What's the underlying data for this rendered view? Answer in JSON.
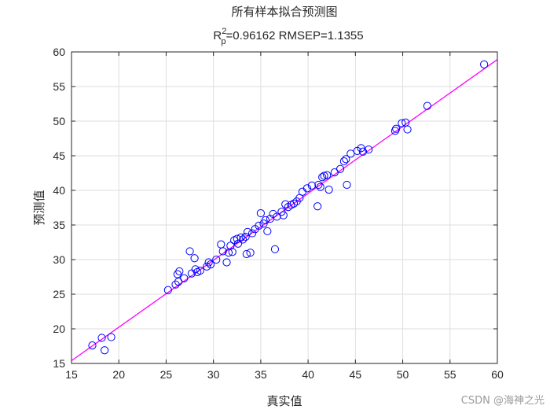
{
  "chart_data": {
    "type": "scatter",
    "title_top": "所有样本拟合预测图",
    "title_r_base": "R",
    "title_r_sup": "2",
    "title_r_sub": "p",
    "title_rest": "=0.96162  RMSEP=1.1355",
    "xlabel": "真实值",
    "ylabel": "预测值",
    "xlim": [
      15,
      60
    ],
    "ylim": [
      15,
      60
    ],
    "xticks": [
      15,
      20,
      25,
      30,
      35,
      40,
      45,
      50,
      55,
      60
    ],
    "yticks": [
      15,
      20,
      25,
      30,
      35,
      40,
      45,
      50,
      55,
      60
    ],
    "grid": true,
    "marker_color": "#0000ff",
    "fit_line": {
      "color": "#ff00ff",
      "x": [
        15,
        60
      ],
      "y": [
        15.4,
        58.9
      ]
    },
    "points": [
      {
        "x": 17.2,
        "y": 17.6
      },
      {
        "x": 18.2,
        "y": 18.7
      },
      {
        "x": 18.5,
        "y": 16.9
      },
      {
        "x": 19.2,
        "y": 18.8
      },
      {
        "x": 25.2,
        "y": 25.6
      },
      {
        "x": 26.0,
        "y": 26.4
      },
      {
        "x": 26.3,
        "y": 26.8
      },
      {
        "x": 26.2,
        "y": 27.9
      },
      {
        "x": 26.4,
        "y": 28.3
      },
      {
        "x": 26.9,
        "y": 27.3
      },
      {
        "x": 27.5,
        "y": 31.2
      },
      {
        "x": 27.7,
        "y": 28.0
      },
      {
        "x": 28.0,
        "y": 30.2
      },
      {
        "x": 28.1,
        "y": 28.6
      },
      {
        "x": 28.3,
        "y": 28.2
      },
      {
        "x": 28.6,
        "y": 28.4
      },
      {
        "x": 29.3,
        "y": 29.0
      },
      {
        "x": 29.5,
        "y": 29.6
      },
      {
        "x": 29.7,
        "y": 29.3
      },
      {
        "x": 30.3,
        "y": 30.0
      },
      {
        "x": 30.8,
        "y": 32.2
      },
      {
        "x": 31.0,
        "y": 31.2
      },
      {
        "x": 31.4,
        "y": 29.6
      },
      {
        "x": 31.6,
        "y": 31.0
      },
      {
        "x": 31.8,
        "y": 32.0
      },
      {
        "x": 32.0,
        "y": 31.1
      },
      {
        "x": 32.2,
        "y": 32.8
      },
      {
        "x": 32.5,
        "y": 33.0
      },
      {
        "x": 32.6,
        "y": 32.3
      },
      {
        "x": 32.9,
        "y": 33.2
      },
      {
        "x": 33.1,
        "y": 32.9
      },
      {
        "x": 33.4,
        "y": 33.3
      },
      {
        "x": 33.5,
        "y": 30.8
      },
      {
        "x": 33.6,
        "y": 34.0
      },
      {
        "x": 33.9,
        "y": 31.0
      },
      {
        "x": 34.1,
        "y": 33.8
      },
      {
        "x": 34.4,
        "y": 34.4
      },
      {
        "x": 34.8,
        "y": 34.9
      },
      {
        "x": 35.0,
        "y": 36.7
      },
      {
        "x": 35.3,
        "y": 35.2
      },
      {
        "x": 35.5,
        "y": 35.7
      },
      {
        "x": 35.7,
        "y": 34.1
      },
      {
        "x": 36.0,
        "y": 35.9
      },
      {
        "x": 36.3,
        "y": 36.6
      },
      {
        "x": 36.5,
        "y": 31.5
      },
      {
        "x": 36.7,
        "y": 36.2
      },
      {
        "x": 37.2,
        "y": 36.9
      },
      {
        "x": 37.4,
        "y": 36.4
      },
      {
        "x": 37.6,
        "y": 38.0
      },
      {
        "x": 37.9,
        "y": 37.6
      },
      {
        "x": 38.2,
        "y": 37.9
      },
      {
        "x": 38.5,
        "y": 38.1
      },
      {
        "x": 38.8,
        "y": 38.4
      },
      {
        "x": 39.1,
        "y": 38.9
      },
      {
        "x": 39.4,
        "y": 39.8
      },
      {
        "x": 39.9,
        "y": 40.3
      },
      {
        "x": 40.4,
        "y": 40.7
      },
      {
        "x": 41.0,
        "y": 37.7
      },
      {
        "x": 41.1,
        "y": 40.8
      },
      {
        "x": 41.3,
        "y": 40.5
      },
      {
        "x": 41.5,
        "y": 41.9
      },
      {
        "x": 41.7,
        "y": 42.1
      },
      {
        "x": 42.0,
        "y": 42.2
      },
      {
        "x": 42.2,
        "y": 40.1
      },
      {
        "x": 42.8,
        "y": 42.6
      },
      {
        "x": 43.4,
        "y": 43.1
      },
      {
        "x": 43.8,
        "y": 44.2
      },
      {
        "x": 44.0,
        "y": 44.5
      },
      {
        "x": 44.1,
        "y": 40.8
      },
      {
        "x": 44.5,
        "y": 45.3
      },
      {
        "x": 45.2,
        "y": 45.7
      },
      {
        "x": 45.6,
        "y": 46.1
      },
      {
        "x": 45.8,
        "y": 45.6
      },
      {
        "x": 46.4,
        "y": 45.9
      },
      {
        "x": 49.2,
        "y": 48.6
      },
      {
        "x": 49.3,
        "y": 48.9
      },
      {
        "x": 49.9,
        "y": 49.7
      },
      {
        "x": 50.3,
        "y": 49.8
      },
      {
        "x": 50.5,
        "y": 48.8
      },
      {
        "x": 52.6,
        "y": 52.2
      },
      {
        "x": 58.6,
        "y": 58.2
      }
    ]
  },
  "watermark": "CSDN @海神之光"
}
